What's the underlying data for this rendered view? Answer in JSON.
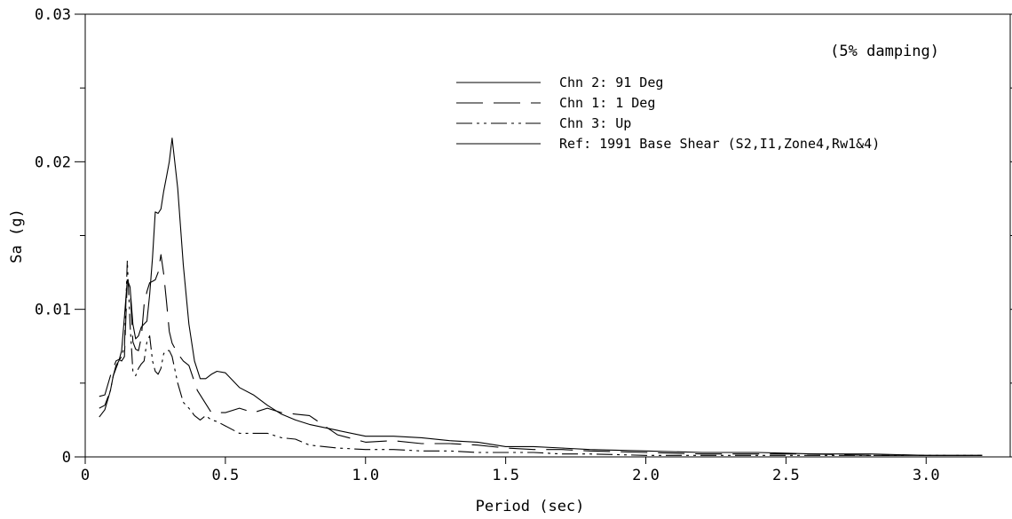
{
  "chart_data": {
    "type": "line",
    "title": "",
    "annotation": "(5% damping)",
    "xlabel": "Period (sec)",
    "ylabel": "Sa (g)",
    "xlim": [
      0,
      3.3
    ],
    "ylim": [
      0,
      0.03
    ],
    "x_ticks": [
      {
        "value": 0,
        "label": "0"
      },
      {
        "value": 0.5,
        "label": "0.5"
      },
      {
        "value": 1.0,
        "label": "1.0"
      },
      {
        "value": 1.5,
        "label": "1.5"
      },
      {
        "value": 2.0,
        "label": "2.0"
      },
      {
        "value": 2.5,
        "label": "2.5"
      },
      {
        "value": 3.0,
        "label": "3.0"
      }
    ],
    "y_ticks": [
      {
        "value": 0,
        "label": "0"
      },
      {
        "value": 0.01,
        "label": "0.01"
      },
      {
        "value": 0.02,
        "label": "0.02"
      },
      {
        "value": 0.03,
        "label": "0.03"
      }
    ],
    "y_minor_ticks": [
      0.005,
      0.015,
      0.025
    ],
    "grid": false,
    "legend_position": "top-right",
    "series": [
      {
        "name": "Chn 2: 91 Deg",
        "style": "solid",
        "x": [
          0.05,
          0.07,
          0.09,
          0.1,
          0.11,
          0.12,
          0.13,
          0.14,
          0.15,
          0.16,
          0.17,
          0.18,
          0.19,
          0.2,
          0.21,
          0.22,
          0.23,
          0.24,
          0.25,
          0.26,
          0.27,
          0.28,
          0.29,
          0.3,
          0.31,
          0.33,
          0.35,
          0.37,
          0.39,
          0.41,
          0.43,
          0.45,
          0.47,
          0.5,
          0.55,
          0.6,
          0.65,
          0.7,
          0.75,
          0.8,
          0.9,
          1.0,
          1.1,
          1.2,
          1.3,
          1.4,
          1.5,
          1.6,
          1.7,
          1.8,
          2.0,
          2.2,
          2.4,
          2.6,
          2.8,
          3.0,
          3.2
        ],
        "y": [
          0.0027,
          0.0032,
          0.0045,
          0.0055,
          0.0062,
          0.0065,
          0.0072,
          0.0095,
          0.012,
          0.0115,
          0.009,
          0.008,
          0.0082,
          0.0088,
          0.009,
          0.0092,
          0.011,
          0.0135,
          0.0166,
          0.0165,
          0.0168,
          0.018,
          0.019,
          0.02,
          0.0216,
          0.0182,
          0.013,
          0.009,
          0.0065,
          0.0053,
          0.0053,
          0.0056,
          0.0058,
          0.0057,
          0.0047,
          0.0042,
          0.0035,
          0.0029,
          0.0025,
          0.0022,
          0.0018,
          0.0014,
          0.0014,
          0.0013,
          0.0011,
          0.001,
          0.0007,
          0.0007,
          0.0006,
          0.0005,
          0.0004,
          0.0003,
          0.0003,
          0.0002,
          0.0002,
          0.0001,
          0.0001
        ]
      },
      {
        "name": "Chn 1:  1 Deg",
        "style": "dashed",
        "x": [
          0.05,
          0.07,
          0.09,
          0.1,
          0.11,
          0.12,
          0.13,
          0.14,
          0.15,
          0.16,
          0.17,
          0.18,
          0.19,
          0.2,
          0.21,
          0.22,
          0.23,
          0.24,
          0.25,
          0.26,
          0.27,
          0.28,
          0.29,
          0.3,
          0.31,
          0.33,
          0.35,
          0.37,
          0.4,
          0.45,
          0.5,
          0.55,
          0.6,
          0.65,
          0.7,
          0.75,
          0.8,
          0.9,
          1.0,
          1.1,
          1.2,
          1.3,
          1.4,
          1.5,
          1.6,
          1.7,
          1.8,
          2.0,
          2.2,
          2.4,
          2.6,
          2.8,
          3.0,
          3.2
        ],
        "y": [
          0.0041,
          0.0042,
          0.0055,
          0.006,
          0.0065,
          0.0066,
          0.0065,
          0.0068,
          0.012,
          0.0115,
          0.0078,
          0.0073,
          0.0072,
          0.0081,
          0.0103,
          0.0112,
          0.0118,
          0.0119,
          0.012,
          0.0125,
          0.0137,
          0.0124,
          0.0105,
          0.0085,
          0.0077,
          0.007,
          0.0065,
          0.0062,
          0.0045,
          0.003,
          0.003,
          0.0033,
          0.003,
          0.0033,
          0.003,
          0.0029,
          0.0028,
          0.0015,
          0.001,
          0.0011,
          0.0009,
          0.0009,
          0.0008,
          0.0006,
          0.0005,
          0.0005,
          0.0004,
          0.0003,
          0.0002,
          0.0002,
          0.0002,
          0.0001,
          0.0001,
          0.0001
        ]
      },
      {
        "name": "Chn 3: Up",
        "style": "dash-dot",
        "x": [
          0.05,
          0.07,
          0.09,
          0.1,
          0.11,
          0.12,
          0.13,
          0.14,
          0.15,
          0.16,
          0.17,
          0.18,
          0.19,
          0.2,
          0.21,
          0.22,
          0.23,
          0.24,
          0.25,
          0.26,
          0.27,
          0.28,
          0.29,
          0.3,
          0.31,
          0.33,
          0.35,
          0.37,
          0.39,
          0.41,
          0.43,
          0.45,
          0.47,
          0.5,
          0.55,
          0.6,
          0.65,
          0.7,
          0.75,
          0.8,
          0.9,
          1.0,
          1.1,
          1.2,
          1.3,
          1.4,
          1.5,
          1.6,
          1.7,
          1.8,
          2.0,
          2.2,
          2.4,
          2.6,
          2.8,
          3.0,
          3.2
        ],
        "y": [
          0.0033,
          0.0035,
          0.0045,
          0.0055,
          0.006,
          0.0065,
          0.0068,
          0.0075,
          0.0133,
          0.009,
          0.0058,
          0.0055,
          0.006,
          0.0063,
          0.0065,
          0.0078,
          0.0082,
          0.0065,
          0.0058,
          0.0056,
          0.006,
          0.007,
          0.0072,
          0.0072,
          0.0068,
          0.005,
          0.0037,
          0.0033,
          0.0028,
          0.0025,
          0.0028,
          0.0025,
          0.0024,
          0.0021,
          0.0016,
          0.0016,
          0.0016,
          0.0013,
          0.0012,
          0.0008,
          0.0006,
          0.0005,
          0.0005,
          0.0004,
          0.0004,
          0.0003,
          0.0003,
          0.0003,
          0.0002,
          0.0002,
          0.0001,
          0.0001,
          0.0001,
          0.0001,
          0.0001,
          0.0001,
          0.0001
        ]
      },
      {
        "name": "Ref: 1991 Base Shear (S2,I1,Zone4,Rw1&4)",
        "style": "solid",
        "x": [],
        "y": []
      }
    ]
  }
}
